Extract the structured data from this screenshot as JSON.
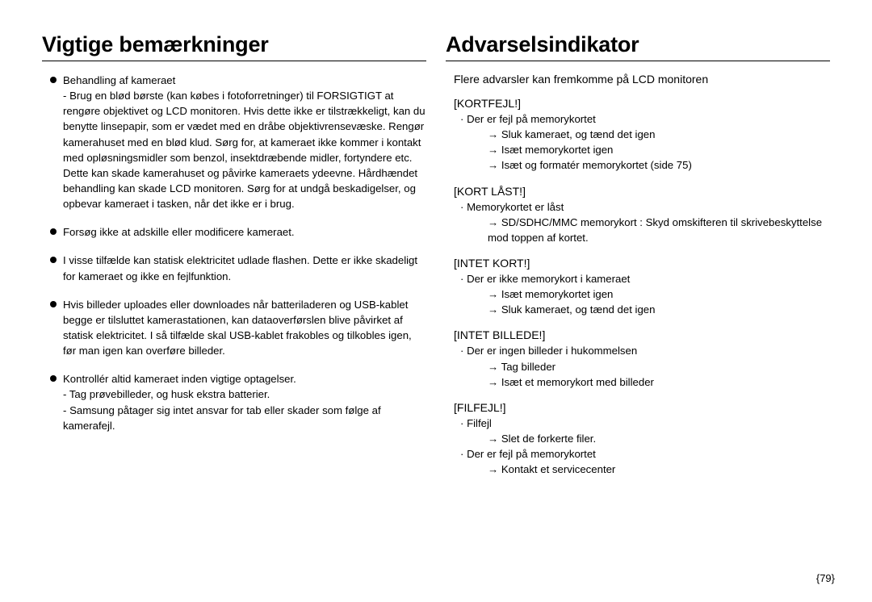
{
  "left": {
    "title": "Vigtige bemærkninger",
    "items": [
      {
        "lead": "Behandling af kameraet",
        "subs": [
          "Brug en blød børste (kan købes i fotoforretninger) til FORSIGTIGT at rengøre objektivet og LCD monitoren. Hvis dette ikke er tilstrækkeligt, kan du benytte linsepapir, som er vædet med en dråbe objektivrensevæske. Rengør kamerahuset med en blød klud. Sørg for, at kameraet ikke kommer i kontakt med opløsningsmidler som benzol, insektdræbende midler, fortyndere etc. Dette kan skade kamerahuset og påvirke kameraets ydeevne. Hårdhændet behandling kan skade LCD monitoren. Sørg for at undgå beskadigelser, og opbevar kameraet i tasken, når det ikke er i brug."
        ]
      },
      {
        "lead": "Forsøg ikke at adskille eller modificere kameraet.",
        "subs": []
      },
      {
        "lead": "I visse tilfælde kan statisk elektricitet udlade flashen. Dette er ikke skadeligt for kameraet og ikke en fejlfunktion.",
        "subs": []
      },
      {
        "lead": "Hvis billeder uploades eller downloades når batteriladeren og USB-kablet begge er tilsluttet kamerastationen, kan dataoverførslen blive påvirket af statisk elektricitet. I så tilfælde skal USB-kablet frakobles og tilkobles igen, før man igen kan overføre billeder.",
        "subs": []
      },
      {
        "lead": "Kontrollér altid kameraet inden vigtige optagelser.",
        "subs": [
          "Tag prøvebilleder, og husk ekstra batterier.",
          "Samsung påtager sig intet ansvar for tab eller skader som følge af kamerafejl."
        ]
      }
    ]
  },
  "right": {
    "title": "Advarselsindikator",
    "intro": "Flere advarsler kan fremkomme på LCD monitoren",
    "sections": [
      {
        "head": "[KORTFEJL!]",
        "items": [
          {
            "text": "Der er fejl på memorykortet",
            "arrows": [
              "Sluk kameraet, og tænd det igen",
              "Isæt memorykortet igen",
              "Isæt og formatér memorykortet (side 75)"
            ]
          }
        ]
      },
      {
        "head": "[KORT LÅST!]",
        "items": [
          {
            "text": "Memorykortet er låst",
            "arrows": [
              "SD/SDHC/MMC memorykort : Skyd omskifteren til skrivebeskyttelse mod toppen af kortet."
            ]
          }
        ]
      },
      {
        "head": "[INTET KORT!]",
        "items": [
          {
            "text": "Der er ikke memorykort i kameraet",
            "arrows": [
              "Isæt memorykortet igen",
              "Sluk kameraet, og tænd det igen"
            ]
          }
        ]
      },
      {
        "head": "[INTET BILLEDE!]",
        "items": [
          {
            "text": "Der er ingen billeder i hukommelsen",
            "arrows": [
              "Tag billeder",
              "Isæt et memorykort med billeder"
            ]
          }
        ]
      },
      {
        "head": "[FILFEJL!]",
        "items": [
          {
            "text": "Filfejl",
            "arrows": [
              "Slet de forkerte filer."
            ]
          },
          {
            "text": "Der er fejl på memorykortet",
            "arrows": [
              "Kontakt et servicecenter"
            ]
          }
        ]
      }
    ]
  },
  "pagenum": "79"
}
